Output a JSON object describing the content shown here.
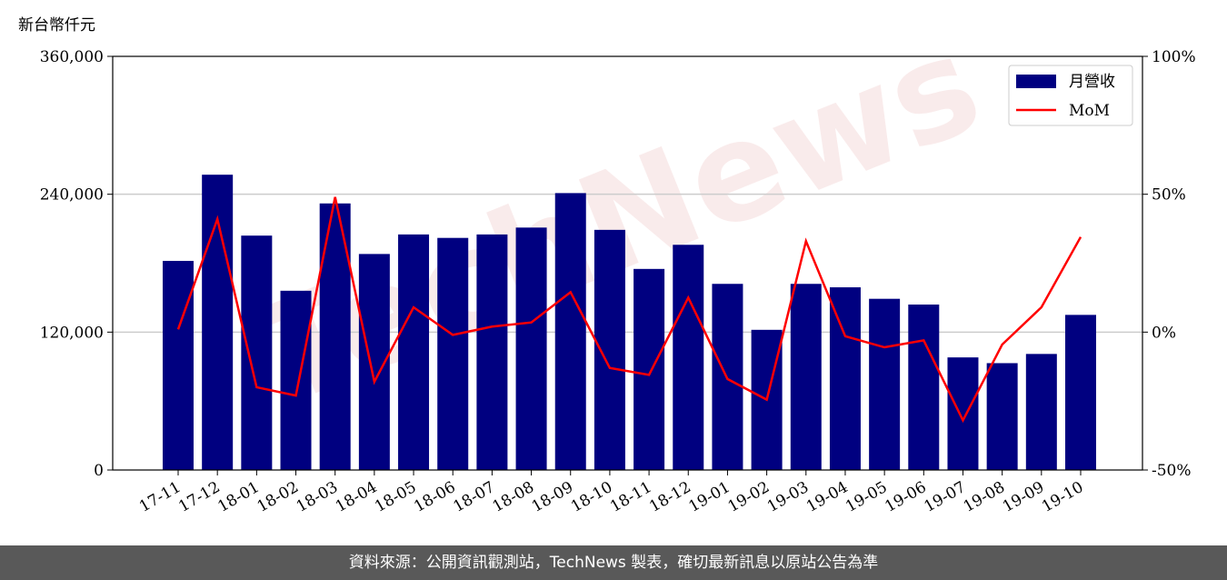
{
  "chart_data": {
    "type": "bar_line",
    "title": "新台幣仟元",
    "watermark": "TechNews",
    "categories": [
      "17-11",
      "17-12",
      "18-01",
      "18-02",
      "18-03",
      "18-04",
      "18-05",
      "18-06",
      "18-07",
      "18-08",
      "18-09",
      "18-10",
      "18-11",
      "18-12",
      "19-01",
      "19-02",
      "19-03",
      "19-04",
      "19-05",
      "19-06",
      "19-07",
      "19-08",
      "19-09",
      "19-10"
    ],
    "series": [
      {
        "name": "月營收",
        "type": "bar",
        "color": "#000080",
        "values": [
          182000,
          257000,
          204000,
          156000,
          232000,
          188000,
          205000,
          202000,
          205000,
          211000,
          241000,
          209000,
          175000,
          196000,
          162000,
          122000,
          162000,
          159000,
          149000,
          144000,
          98000,
          93000,
          101000,
          135000
        ]
      },
      {
        "name": "MoM",
        "type": "line",
        "axis": "y2",
        "color": "#ff0000",
        "values": [
          1,
          41,
          -20,
          -23,
          49,
          -18,
          9,
          -1,
          2,
          3.5,
          14.5,
          -13,
          -15.5,
          12.5,
          -17,
          -24.5,
          33,
          -1.5,
          -5.5,
          -3,
          -32,
          -4.5,
          9,
          34.5
        ]
      }
    ],
    "ylim": [
      0,
      360000
    ],
    "yticks": [
      0,
      {
        "value": 120000,
        "label": "120,000"
      },
      {
        "value": 240000,
        "label": "240,000"
      },
      {
        "value": 360000,
        "label": "360,000"
      }
    ],
    "y2lim": [
      -50,
      100
    ],
    "y2ticks": [
      {
        "value": -50,
        "label": "-50%"
      },
      {
        "value": 0,
        "label": "0%"
      },
      {
        "value": 50,
        "label": "50%"
      },
      {
        "value": 100,
        "label": "100%"
      }
    ],
    "grid": true,
    "legend": "upper right"
  },
  "footer": "資料來源：公開資訊觀測站，TechNews 製表，確切最新訊息以原站公告為準"
}
